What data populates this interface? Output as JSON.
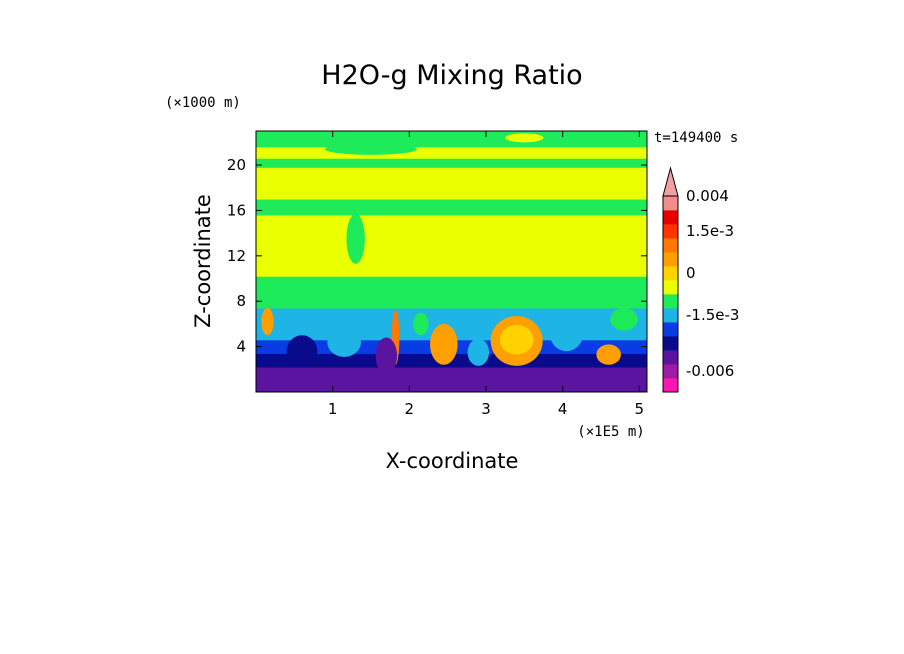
{
  "chart_data": {
    "type": "heatmap",
    "title": "H2O-g Mixing Ratio",
    "xlabel": "X-coordinate",
    "ylabel": "Z-coordinate",
    "x_unit": "(×1E5 m)",
    "y_unit": "(×1000 m)",
    "time_label": "t=149400 s",
    "xlim": [
      0,
      5.1
    ],
    "ylim": [
      0,
      23
    ],
    "x_ticks": [
      {
        "value": 1,
        "label": "1"
      },
      {
        "value": 2,
        "label": "2"
      },
      {
        "value": 3,
        "label": "3"
      },
      {
        "value": 4,
        "label": "4"
      },
      {
        "value": 5,
        "label": "5"
      }
    ],
    "y_ticks": [
      {
        "value": 4,
        "label": "4"
      },
      {
        "value": 8,
        "label": "8"
      },
      {
        "value": 12,
        "label": "12"
      },
      {
        "value": 16,
        "label": "16"
      },
      {
        "value": 20,
        "label": "20"
      }
    ],
    "colorbar": {
      "colors": [
        "#ff14b4",
        "#a01aa6",
        "#5a14a0",
        "#0a0a8c",
        "#0a3ce6",
        "#1eb4e6",
        "#1eeb5a",
        "#eaff00",
        "#ffd200",
        "#ffa000",
        "#ff7800",
        "#ff3200",
        "#e60000",
        "#f08c8c",
        "#f0a0a0"
      ],
      "labels": [
        {
          "level": 14,
          "text": "0.004"
        },
        {
          "level": 11.5,
          "text": "1.5e-3"
        },
        {
          "level": 8.5,
          "text": "0"
        },
        {
          "level": 5.5,
          "text": "-1.5e-3"
        },
        {
          "level": 1.5,
          "text": "-0.006"
        }
      ]
    },
    "field_bands": [
      {
        "z": [
          0.0,
          1.0
        ],
        "color": "#5a14a0"
      },
      {
        "z": [
          1.0,
          2.2
        ],
        "color": "#5a14a0"
      },
      {
        "z": [
          2.2,
          3.4
        ],
        "color": "#0a0a8c"
      },
      {
        "z": [
          3.4,
          4.6
        ],
        "color": "#0a3ce6"
      },
      {
        "z": [
          4.6,
          6.0
        ],
        "color": "#1eb4e6"
      },
      {
        "z": [
          6.0,
          7.4
        ],
        "color": "#1eb4e6"
      },
      {
        "z": [
          7.4,
          8.8
        ],
        "color": "#1eeb5a"
      },
      {
        "z": [
          8.8,
          10.2
        ],
        "color": "#1eeb5a"
      },
      {
        "z": [
          10.2,
          15.6
        ],
        "color": "#eaff00"
      },
      {
        "z": [
          15.6,
          17.0
        ],
        "color": "#1eeb5a"
      },
      {
        "z": [
          17.0,
          19.8
        ],
        "color": "#eaff00"
      },
      {
        "z": [
          19.8,
          20.6
        ],
        "color": "#1eeb5a"
      },
      {
        "z": [
          20.6,
          21.6
        ],
        "color": "#eaff00"
      },
      {
        "z": [
          21.6,
          23.0
        ],
        "color": "#1eeb5a"
      }
    ],
    "field_blobs": [
      {
        "x": 0.15,
        "z": 6.2,
        "rx": 0.08,
        "rz": 1.2,
        "color": "#ffa000"
      },
      {
        "x": 0.6,
        "z": 3.6,
        "rx": 0.2,
        "rz": 1.4,
        "color": "#0a0a8c"
      },
      {
        "x": 1.15,
        "z": 4.4,
        "rx": 0.22,
        "rz": 1.3,
        "color": "#1eb4e6"
      },
      {
        "x": 1.82,
        "z": 4.8,
        "rx": 0.05,
        "rz": 2.4,
        "color": "#ff7800"
      },
      {
        "x": 1.7,
        "z": 3.2,
        "rx": 0.14,
        "rz": 1.6,
        "color": "#5a14a0"
      },
      {
        "x": 2.45,
        "z": 4.2,
        "rx": 0.18,
        "rz": 1.8,
        "color": "#ffa000"
      },
      {
        "x": 2.15,
        "z": 6.0,
        "rx": 0.1,
        "rz": 1.0,
        "color": "#1eeb5a"
      },
      {
        "x": 3.4,
        "z": 4.5,
        "rx": 0.34,
        "rz": 2.2,
        "color": "#ffa000"
      },
      {
        "x": 3.4,
        "z": 4.6,
        "rx": 0.22,
        "rz": 1.3,
        "color": "#ffd200"
      },
      {
        "x": 2.9,
        "z": 3.5,
        "rx": 0.14,
        "rz": 1.2,
        "color": "#1eb4e6"
      },
      {
        "x": 4.05,
        "z": 5.2,
        "rx": 0.22,
        "rz": 1.6,
        "color": "#1eb4e6"
      },
      {
        "x": 4.6,
        "z": 3.3,
        "rx": 0.16,
        "rz": 0.9,
        "color": "#ffa000"
      },
      {
        "x": 4.8,
        "z": 6.4,
        "rx": 0.18,
        "rz": 1.0,
        "color": "#1eeb5a"
      },
      {
        "x": 1.5,
        "z": 21.4,
        "rx": 0.6,
        "rz": 0.5,
        "color": "#1eeb5a"
      },
      {
        "x": 3.5,
        "z": 22.4,
        "rx": 0.25,
        "rz": 0.4,
        "color": "#eaff00"
      },
      {
        "x": 1.3,
        "z": 13.5,
        "rx": 0.12,
        "rz": 2.2,
        "color": "#1eeb5a"
      },
      {
        "x": 0.3,
        "z": 18.4,
        "rx": 0.35,
        "rz": 0.4,
        "color": "#eaff00"
      }
    ]
  }
}
